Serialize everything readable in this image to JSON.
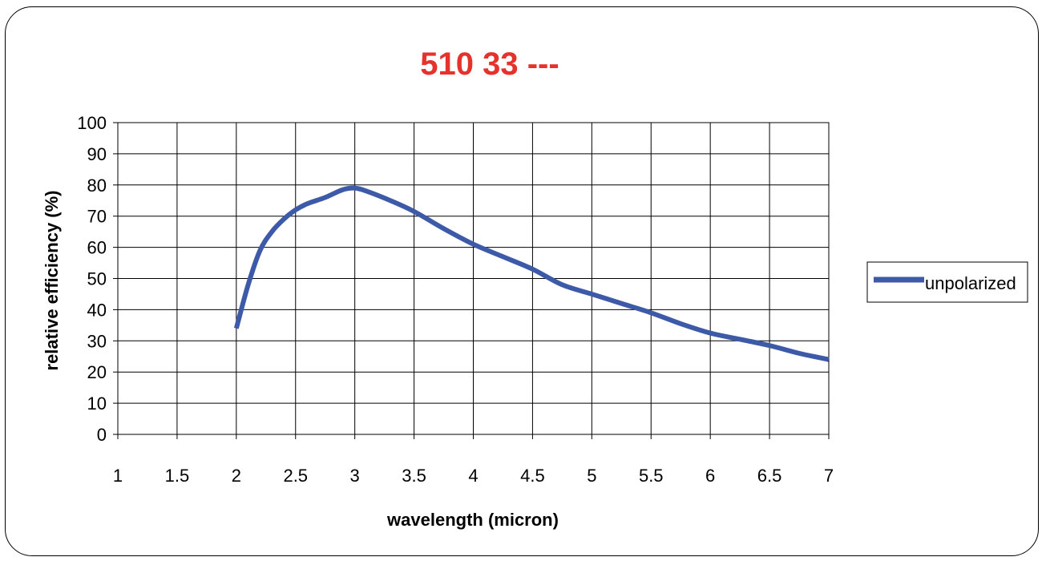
{
  "chart_data": {
    "type": "line",
    "title": "510 33 ---",
    "title_color": "#e5322d",
    "xlabel": "wavelength (micron)",
    "ylabel": "relative efficiency (%)",
    "xlim": [
      1,
      7
    ],
    "ylim": [
      0,
      100
    ],
    "x_ticks": [
      "1",
      "1.5",
      "2",
      "2.5",
      "3",
      "3.5",
      "4",
      "4.5",
      "5",
      "5.5",
      "6",
      "6.5",
      "7"
    ],
    "y_ticks": [
      "0",
      "10",
      "20",
      "30",
      "40",
      "50",
      "60",
      "70",
      "80",
      "90",
      "100"
    ],
    "grid": true,
    "legend_position": "right",
    "series": [
      {
        "name": "unpolarized",
        "color": "#3d5aa8",
        "x": [
          2.0,
          2.1,
          2.2,
          2.3,
          2.4,
          2.5,
          2.6,
          2.75,
          2.9,
          3.0,
          3.1,
          3.3,
          3.5,
          3.75,
          4.0,
          4.25,
          4.5,
          4.75,
          5.0,
          5.25,
          5.5,
          5.75,
          6.0,
          6.25,
          6.5,
          6.75,
          7.0
        ],
        "y": [
          34,
          48,
          59,
          65,
          69,
          72,
          74,
          76,
          78.5,
          79,
          78,
          75,
          71.5,
          66,
          61,
          57,
          53,
          48,
          45,
          42,
          39,
          35.5,
          32.5,
          30.5,
          28.5,
          26,
          24
        ]
      }
    ]
  }
}
